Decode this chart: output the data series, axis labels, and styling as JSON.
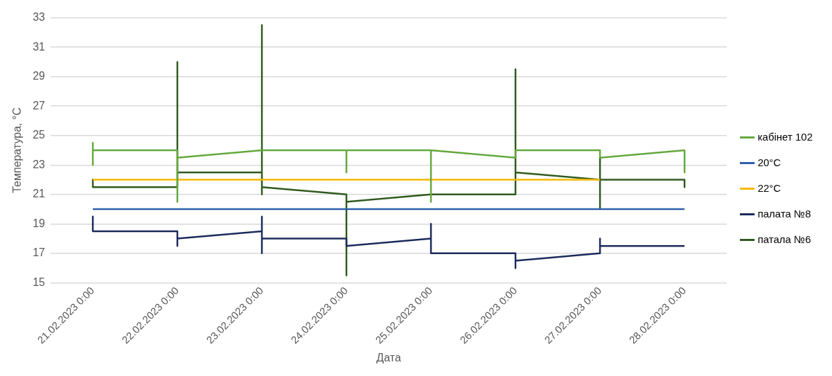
{
  "chart_data": {
    "type": "line",
    "xlabel": "Дата",
    "ylabel": "Температура, °C",
    "xlim": [
      "2023-02-20T12:00",
      "2023-02-28T12:00"
    ],
    "xticks": [
      {
        "value": "2023-02-21T00:00",
        "label": "21.02.2023 0:00"
      },
      {
        "value": "2023-02-22T00:00",
        "label": "22.02.2023 0:00"
      },
      {
        "value": "2023-02-23T00:00",
        "label": "23.02.2023 0:00"
      },
      {
        "value": "2023-02-24T00:00",
        "label": "24.02.2023 0:00"
      },
      {
        "value": "2023-02-25T00:00",
        "label": "25.02.2023 0:00"
      },
      {
        "value": "2023-02-26T00:00",
        "label": "26.02.2023 0:00"
      },
      {
        "value": "2023-02-27T00:00",
        "label": "27.02.2023 0:00"
      },
      {
        "value": "2023-02-28T00:00",
        "label": "28.02.2023 0:00"
      }
    ],
    "ylim": [
      15,
      33
    ],
    "yticks": [
      15,
      17,
      19,
      21,
      23,
      25,
      27,
      29,
      31,
      33
    ],
    "grid": "y",
    "legend": "right",
    "marker": "none",
    "line_style": "solid",
    "series": [
      {
        "name": "кабінет 102",
        "color": "#64a83c",
        "x": [
          "2023-02-21T00:00",
          "2023-02-21T00:00",
          "2023-02-21T00:00",
          "2023-02-22T00:00",
          "2023-02-22T00:00",
          "2023-02-22T00:00",
          "2023-02-23T00:00",
          "2023-02-24T00:00",
          "2023-02-24T00:00",
          "2023-02-24T00:00",
          "2023-02-25T00:00",
          "2023-02-25T00:00",
          "2023-02-25T00:00",
          "2023-02-26T00:00",
          "2023-02-26T00:00",
          "2023-02-27T00:00",
          "2023-02-27T00:00",
          "2023-02-28T00:00",
          "2023-02-28T00:00"
        ],
        "values": [
          24.5,
          23,
          24,
          24,
          20.5,
          23.5,
          24,
          24,
          22.5,
          24,
          24,
          20.5,
          24,
          23.5,
          24,
          24,
          23.5,
          24,
          22.5
        ]
      },
      {
        "name": "20°C",
        "color": "#2e5eac",
        "x": [
          "2023-02-21T00:00",
          "2023-02-22T00:00",
          "2023-02-23T00:00",
          "2023-02-24T00:00",
          "2023-02-25T00:00",
          "2023-02-26T00:00",
          "2023-02-27T00:00",
          "2023-02-28T00:00"
        ],
        "values": [
          20,
          20,
          20,
          20,
          20,
          20,
          20,
          20
        ]
      },
      {
        "name": "22°C",
        "color": "#f5b800",
        "x": [
          "2023-02-21T00:00",
          "2023-02-22T00:00",
          "2023-02-23T00:00",
          "2023-02-24T00:00",
          "2023-02-25T00:00",
          "2023-02-26T00:00",
          "2023-02-27T00:00"
        ],
        "values": [
          22,
          22,
          22,
          22,
          22,
          22,
          22
        ]
      },
      {
        "name": "палата №8",
        "color": "#1b2a5c",
        "x": [
          "2023-02-21T00:00",
          "2023-02-21T00:00",
          "2023-02-22T00:00",
          "2023-02-22T00:00",
          "2023-02-22T00:00",
          "2023-02-23T00:00",
          "2023-02-23T00:00",
          "2023-02-23T00:00",
          "2023-02-23T00:00",
          "2023-02-24T00:00",
          "2023-02-24T00:00",
          "2023-02-25T00:00",
          "2023-02-25T00:00",
          "2023-02-25T00:00",
          "2023-02-26T00:00",
          "2023-02-26T00:00",
          "2023-02-26T00:00",
          "2023-02-27T00:00",
          "2023-02-27T00:00",
          "2023-02-27T00:00",
          "2023-02-28T00:00"
        ],
        "values": [
          19.5,
          18.5,
          18.5,
          17.5,
          18,
          18.5,
          19.5,
          17,
          18,
          18,
          17.5,
          18,
          19,
          17,
          17,
          16,
          16.5,
          17,
          18,
          17.5,
          17.5
        ]
      },
      {
        "name": "патала №6",
        "color": "#2f5a1e",
        "x": [
          "2023-02-21T00:00",
          "2023-02-21T00:00",
          "2023-02-22T00:00",
          "2023-02-22T00:00",
          "2023-02-22T00:00",
          "2023-02-23T00:00",
          "2023-02-23T00:00",
          "2023-02-23T00:00",
          "2023-02-23T00:00",
          "2023-02-24T00:00",
          "2023-02-24T00:00",
          "2023-02-24T00:00",
          "2023-02-25T00:00",
          "2023-02-26T00:00",
          "2023-02-26T00:00",
          "2023-02-26T00:00",
          "2023-02-27T00:00",
          "2023-02-27T00:00",
          "2023-02-27T00:00",
          "2023-02-27T00:00",
          "2023-02-28T00:00",
          "2023-02-28T00:00"
        ],
        "values": [
          22,
          21.5,
          21.5,
          30,
          22.5,
          22.5,
          32.5,
          21,
          21.5,
          21,
          15.5,
          20.5,
          21,
          21,
          29.5,
          22.5,
          22,
          23.5,
          20,
          22,
          22,
          21.5
        ]
      }
    ]
  }
}
